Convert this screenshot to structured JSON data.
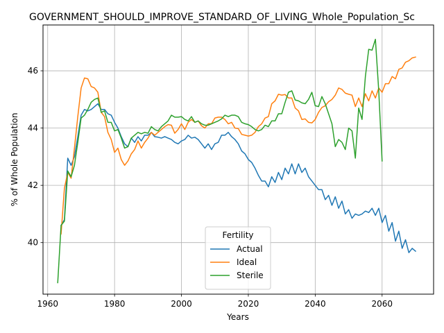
{
  "chart_data": {
    "type": "line",
    "title": "GOVERNMENT_SHOULD_IMPROVE_STANDARD_OF_LIVING_Whole_Population_Sc",
    "xlabel": "Years",
    "ylabel": "% of Whole Population",
    "xlim": [
      1958.6,
      2075.4
    ],
    "ylim": [
      38.2,
      47.6
    ],
    "xticks": [
      1960,
      1980,
      2000,
      2020,
      2040,
      2060
    ],
    "yticks": [
      40,
      42,
      44,
      46
    ],
    "grid": true,
    "legend": {
      "title": "Fertility",
      "placement": "lower-center"
    },
    "series": [
      {
        "name": "Actual",
        "color": "#1f77b4",
        "points": [
          [
            1964,
            40.6
          ],
          [
            1965,
            40.8
          ],
          [
            1966,
            42.95
          ],
          [
            1967,
            42.7
          ],
          [
            1968,
            43.0
          ],
          [
            1969,
            43.7
          ],
          [
            1970,
            44.45
          ],
          [
            1971,
            44.65
          ],
          [
            1972,
            44.6
          ],
          [
            1973,
            44.65
          ],
          [
            1974,
            44.75
          ],
          [
            1975,
            44.85
          ],
          [
            1976,
            44.65
          ],
          [
            1977,
            44.65
          ],
          [
            1978,
            44.5
          ],
          [
            1979,
            44.45
          ],
          [
            1980,
            44.2
          ],
          [
            1981,
            44.0
          ],
          [
            1982,
            43.7
          ],
          [
            1983,
            43.45
          ],
          [
            1984,
            43.35
          ],
          [
            1985,
            43.65
          ],
          [
            1986,
            43.5
          ],
          [
            1987,
            43.7
          ],
          [
            1988,
            43.55
          ],
          [
            1989,
            43.75
          ],
          [
            1990,
            43.75
          ],
          [
            1991,
            43.85
          ],
          [
            1992,
            43.7
          ],
          [
            1993,
            43.68
          ],
          [
            1994,
            43.65
          ],
          [
            1995,
            43.7
          ],
          [
            1996,
            43.65
          ],
          [
            1997,
            43.6
          ],
          [
            1998,
            43.5
          ],
          [
            1999,
            43.45
          ],
          [
            2000,
            43.55
          ],
          [
            2001,
            43.6
          ],
          [
            2002,
            43.75
          ],
          [
            2003,
            43.65
          ],
          [
            2004,
            43.68
          ],
          [
            2005,
            43.6
          ],
          [
            2006,
            43.45
          ],
          [
            2007,
            43.3
          ],
          [
            2008,
            43.45
          ],
          [
            2009,
            43.25
          ],
          [
            2010,
            43.45
          ],
          [
            2011,
            43.5
          ],
          [
            2012,
            43.75
          ],
          [
            2013,
            43.75
          ],
          [
            2014,
            43.85
          ],
          [
            2015,
            43.7
          ],
          [
            2016,
            43.6
          ],
          [
            2017,
            43.45
          ],
          [
            2018,
            43.2
          ],
          [
            2019,
            43.1
          ],
          [
            2020,
            42.9
          ],
          [
            2021,
            42.8
          ],
          [
            2022,
            42.6
          ],
          [
            2023,
            42.35
          ],
          [
            2024,
            42.15
          ],
          [
            2025,
            42.15
          ],
          [
            2026,
            41.95
          ],
          [
            2027,
            42.3
          ],
          [
            2028,
            42.1
          ],
          [
            2029,
            42.45
          ],
          [
            2030,
            42.2
          ],
          [
            2031,
            42.6
          ],
          [
            2032,
            42.4
          ],
          [
            2033,
            42.75
          ],
          [
            2034,
            42.4
          ],
          [
            2035,
            42.75
          ],
          [
            2036,
            42.45
          ],
          [
            2037,
            42.6
          ],
          [
            2038,
            42.3
          ],
          [
            2039,
            42.15
          ],
          [
            2040,
            42.0
          ],
          [
            2041,
            41.85
          ],
          [
            2042,
            41.85
          ],
          [
            2043,
            41.5
          ],
          [
            2044,
            41.65
          ],
          [
            2045,
            41.3
          ],
          [
            2046,
            41.6
          ],
          [
            2047,
            41.2
          ],
          [
            2048,
            41.45
          ],
          [
            2049,
            41.0
          ],
          [
            2050,
            41.15
          ],
          [
            2051,
            40.85
          ],
          [
            2052,
            41.0
          ],
          [
            2053,
            40.95
          ],
          [
            2054,
            41.0
          ],
          [
            2055,
            41.1
          ],
          [
            2056,
            41.05
          ],
          [
            2057,
            41.2
          ],
          [
            2058,
            40.95
          ],
          [
            2059,
            41.2
          ],
          [
            2060,
            40.7
          ],
          [
            2061,
            40.95
          ],
          [
            2062,
            40.4
          ],
          [
            2063,
            40.7
          ],
          [
            2064,
            40.05
          ],
          [
            2065,
            40.4
          ],
          [
            2066,
            39.8
          ],
          [
            2067,
            40.1
          ],
          [
            2068,
            39.65
          ],
          [
            2069,
            39.8
          ],
          [
            2070,
            39.7
          ]
        ]
      },
      {
        "name": "Ideal",
        "color": "#ff7f0e",
        "points": [
          [
            1964,
            40.3
          ],
          [
            1965,
            41.9
          ],
          [
            1966,
            42.45
          ],
          [
            1967,
            42.25
          ],
          [
            1968,
            43.3
          ],
          [
            1969,
            44.4
          ],
          [
            1970,
            45.4
          ],
          [
            1971,
            45.75
          ],
          [
            1972,
            45.72
          ],
          [
            1973,
            45.45
          ],
          [
            1974,
            45.4
          ],
          [
            1975,
            45.25
          ],
          [
            1976,
            44.55
          ],
          [
            1977,
            44.4
          ],
          [
            1978,
            43.85
          ],
          [
            1979,
            43.6
          ],
          [
            1980,
            43.15
          ],
          [
            1981,
            43.3
          ],
          [
            1982,
            42.9
          ],
          [
            1983,
            42.7
          ],
          [
            1984,
            42.85
          ],
          [
            1985,
            43.1
          ],
          [
            1986,
            43.25
          ],
          [
            1987,
            43.55
          ],
          [
            1988,
            43.3
          ],
          [
            1989,
            43.5
          ],
          [
            1990,
            43.65
          ],
          [
            1991,
            43.85
          ],
          [
            1992,
            43.75
          ],
          [
            1993,
            43.85
          ],
          [
            1994,
            43.95
          ],
          [
            1995,
            44.05
          ],
          [
            1996,
            44.12
          ],
          [
            1997,
            44.1
          ],
          [
            1998,
            43.82
          ],
          [
            1999,
            43.95
          ],
          [
            2000,
            44.15
          ],
          [
            2001,
            43.95
          ],
          [
            2002,
            44.2
          ],
          [
            2003,
            44.3
          ],
          [
            2004,
            44.2
          ],
          [
            2005,
            44.25
          ],
          [
            2006,
            44.08
          ],
          [
            2007,
            44.0
          ],
          [
            2008,
            44.15
          ],
          [
            2009,
            44.15
          ],
          [
            2010,
            44.35
          ],
          [
            2011,
            44.38
          ],
          [
            2012,
            44.38
          ],
          [
            2013,
            44.3
          ],
          [
            2014,
            44.15
          ],
          [
            2015,
            44.2
          ],
          [
            2016,
            44.0
          ],
          [
            2017,
            43.98
          ],
          [
            2018,
            43.78
          ],
          [
            2019,
            43.75
          ],
          [
            2020,
            43.72
          ],
          [
            2021,
            43.75
          ],
          [
            2022,
            43.85
          ],
          [
            2023,
            44.05
          ],
          [
            2024,
            44.15
          ],
          [
            2025,
            44.35
          ],
          [
            2026,
            44.4
          ],
          [
            2027,
            44.85
          ],
          [
            2028,
            44.95
          ],
          [
            2029,
            45.18
          ],
          [
            2030,
            45.15
          ],
          [
            2031,
            45.17
          ],
          [
            2032,
            45.05
          ],
          [
            2033,
            45.05
          ],
          [
            2034,
            44.7
          ],
          [
            2035,
            44.6
          ],
          [
            2036,
            44.3
          ],
          [
            2037,
            44.32
          ],
          [
            2038,
            44.2
          ],
          [
            2039,
            44.18
          ],
          [
            2040,
            44.3
          ],
          [
            2041,
            44.55
          ],
          [
            2042,
            44.72
          ],
          [
            2043,
            44.78
          ],
          [
            2044,
            44.92
          ],
          [
            2045,
            45.0
          ],
          [
            2046,
            45.15
          ],
          [
            2047,
            45.4
          ],
          [
            2048,
            45.35
          ],
          [
            2049,
            45.22
          ],
          [
            2050,
            45.18
          ],
          [
            2051,
            45.15
          ],
          [
            2052,
            44.75
          ],
          [
            2053,
            45.05
          ],
          [
            2054,
            44.75
          ],
          [
            2055,
            45.2
          ],
          [
            2056,
            44.95
          ],
          [
            2057,
            45.3
          ],
          [
            2058,
            45.05
          ],
          [
            2059,
            45.4
          ],
          [
            2060,
            45.25
          ],
          [
            2061,
            45.55
          ],
          [
            2062,
            45.55
          ],
          [
            2063,
            45.8
          ],
          [
            2064,
            45.72
          ],
          [
            2065,
            46.05
          ],
          [
            2066,
            46.1
          ],
          [
            2067,
            46.3
          ],
          [
            2068,
            46.35
          ],
          [
            2069,
            46.45
          ],
          [
            2070,
            46.48
          ]
        ]
      },
      {
        "name": "Sterile",
        "color": "#2ca02c",
        "points": [
          [
            1963,
            38.6
          ],
          [
            1964,
            40.6
          ],
          [
            1965,
            40.75
          ],
          [
            1966,
            42.5
          ],
          [
            1967,
            42.3
          ],
          [
            1968,
            42.7
          ],
          [
            1969,
            43.5
          ],
          [
            1970,
            44.35
          ],
          [
            1971,
            44.45
          ],
          [
            1972,
            44.65
          ],
          [
            1973,
            44.9
          ],
          [
            1974,
            45.0
          ],
          [
            1975,
            45.05
          ],
          [
            1976,
            44.55
          ],
          [
            1977,
            44.6
          ],
          [
            1978,
            44.2
          ],
          [
            1979,
            44.2
          ],
          [
            1980,
            43.9
          ],
          [
            1981,
            43.95
          ],
          [
            1982,
            43.65
          ],
          [
            1983,
            43.3
          ],
          [
            1984,
            43.35
          ],
          [
            1985,
            43.65
          ],
          [
            1986,
            43.75
          ],
          [
            1987,
            43.85
          ],
          [
            1988,
            43.8
          ],
          [
            1989,
            43.85
          ],
          [
            1990,
            43.82
          ],
          [
            1991,
            44.05
          ],
          [
            1992,
            43.95
          ],
          [
            1993,
            43.9
          ],
          [
            1994,
            44.05
          ],
          [
            1995,
            44.15
          ],
          [
            1996,
            44.25
          ],
          [
            1997,
            44.45
          ],
          [
            1998,
            44.38
          ],
          [
            1999,
            44.38
          ],
          [
            2000,
            44.4
          ],
          [
            2001,
            44.3
          ],
          [
            2002,
            44.25
          ],
          [
            2003,
            44.4
          ],
          [
            2004,
            44.2
          ],
          [
            2005,
            44.25
          ],
          [
            2006,
            44.15
          ],
          [
            2007,
            44.1
          ],
          [
            2008,
            44.1
          ],
          [
            2009,
            44.15
          ],
          [
            2010,
            44.2
          ],
          [
            2011,
            44.25
          ],
          [
            2012,
            44.32
          ],
          [
            2013,
            44.45
          ],
          [
            2014,
            44.4
          ],
          [
            2015,
            44.45
          ],
          [
            2016,
            44.45
          ],
          [
            2017,
            44.4
          ],
          [
            2018,
            44.2
          ],
          [
            2019,
            44.15
          ],
          [
            2020,
            44.12
          ],
          [
            2021,
            44.05
          ],
          [
            2022,
            43.95
          ],
          [
            2023,
            43.9
          ],
          [
            2024,
            43.95
          ],
          [
            2025,
            44.1
          ],
          [
            2026,
            44.05
          ],
          [
            2027,
            44.25
          ],
          [
            2028,
            44.25
          ],
          [
            2029,
            44.5
          ],
          [
            2030,
            44.5
          ],
          [
            2031,
            44.9
          ],
          [
            2032,
            45.25
          ],
          [
            2033,
            45.3
          ],
          [
            2034,
            44.98
          ],
          [
            2035,
            44.95
          ],
          [
            2036,
            44.88
          ],
          [
            2037,
            44.85
          ],
          [
            2038,
            45.0
          ],
          [
            2039,
            45.25
          ],
          [
            2040,
            44.78
          ],
          [
            2041,
            44.75
          ],
          [
            2042,
            45.1
          ],
          [
            2043,
            44.85
          ],
          [
            2044,
            44.5
          ],
          [
            2045,
            44.15
          ],
          [
            2046,
            43.35
          ],
          [
            2047,
            43.6
          ],
          [
            2048,
            43.5
          ],
          [
            2049,
            43.25
          ],
          [
            2050,
            44.0
          ],
          [
            2051,
            43.9
          ],
          [
            2052,
            42.95
          ],
          [
            2053,
            44.7
          ],
          [
            2054,
            44.3
          ],
          [
            2055,
            45.8
          ],
          [
            2056,
            46.75
          ],
          [
            2057,
            46.72
          ],
          [
            2058,
            47.1
          ],
          [
            2059,
            45.3
          ],
          [
            2060,
            42.85
          ]
        ]
      }
    ]
  }
}
